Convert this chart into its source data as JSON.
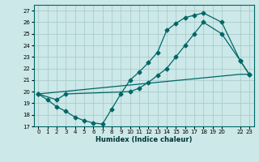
{
  "xlabel": "Humidex (Indice chaleur)",
  "bg_color": "#cce8e8",
  "line_color": "#006666",
  "grid_color": "#aacccc",
  "xlim": [
    -0.5,
    23.5
  ],
  "ylim": [
    17,
    27.5
  ],
  "xticks": [
    0,
    1,
    2,
    3,
    4,
    5,
    6,
    7,
    8,
    9,
    10,
    11,
    12,
    13,
    14,
    15,
    16,
    17,
    18,
    19,
    20,
    22,
    23
  ],
  "yticks": [
    17,
    18,
    19,
    20,
    21,
    22,
    23,
    24,
    25,
    26,
    27
  ],
  "line1_x": [
    0,
    1,
    2,
    3,
    4,
    5,
    6,
    7,
    8,
    9,
    10,
    11,
    12,
    13,
    14,
    15,
    16,
    17,
    18,
    20,
    22,
    23
  ],
  "line1_y": [
    19.8,
    19.3,
    18.7,
    18.3,
    17.8,
    17.5,
    17.3,
    17.2,
    18.5,
    19.8,
    21.0,
    21.7,
    22.5,
    23.4,
    25.3,
    25.9,
    26.4,
    26.6,
    26.8,
    26.0,
    22.7,
    21.5
  ],
  "line2_x": [
    0,
    2,
    3,
    10,
    11,
    12,
    13,
    14,
    15,
    16,
    17,
    18,
    20,
    22,
    23
  ],
  "line2_y": [
    19.8,
    19.3,
    19.8,
    20.0,
    20.3,
    20.8,
    21.4,
    22.0,
    23.0,
    24.0,
    25.0,
    26.0,
    25.0,
    22.7,
    21.5
  ],
  "line3_x": [
    0,
    22,
    23
  ],
  "line3_y": [
    19.8,
    21.5,
    21.5
  ]
}
